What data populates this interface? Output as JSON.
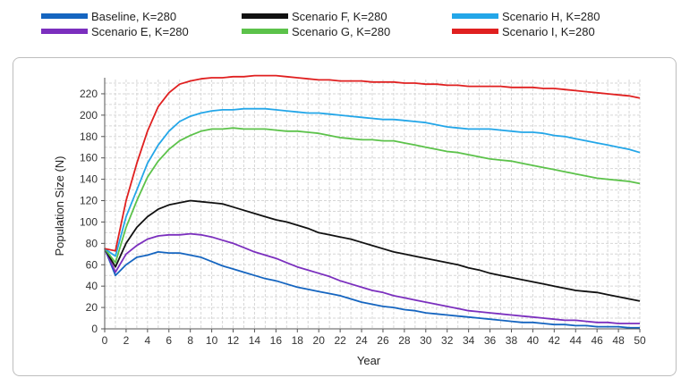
{
  "chart_data": {
    "type": "line",
    "title": "",
    "xlabel": "Year",
    "ylabel": "Population Size (N)",
    "xlim": [
      0,
      50
    ],
    "ylim": [
      0,
      230
    ],
    "xticks": [
      "0",
      "2",
      "4",
      "6",
      "8",
      "10",
      "12",
      "14",
      "16",
      "18",
      "20",
      "22",
      "24",
      "26",
      "28",
      "30",
      "32",
      "34",
      "36",
      "38",
      "40",
      "42",
      "44",
      "46",
      "48",
      "50"
    ],
    "yticks": [
      "0",
      "20",
      "40",
      "60",
      "80",
      "100",
      "120",
      "140",
      "160",
      "180",
      "200",
      "220"
    ],
    "grid": true,
    "legend_position": "top",
    "x": [
      0,
      1,
      2,
      3,
      4,
      5,
      6,
      7,
      8,
      9,
      10,
      11,
      12,
      13,
      14,
      15,
      16,
      17,
      18,
      19,
      20,
      21,
      22,
      23,
      24,
      25,
      26,
      27,
      28,
      29,
      30,
      31,
      32,
      33,
      34,
      35,
      36,
      37,
      38,
      39,
      40,
      41,
      42,
      43,
      44,
      45,
      46,
      47,
      48,
      49,
      50
    ],
    "series": [
      {
        "name": "Baseline, K=280",
        "color": "#1565c0",
        "values": [
          75,
          50,
          60,
          67,
          69,
          72,
          71,
          71,
          69,
          67,
          63,
          59,
          56,
          53,
          50,
          47,
          45,
          42,
          39,
          37,
          35,
          33,
          31,
          28,
          25,
          23,
          21,
          20,
          18,
          17,
          15,
          14,
          13,
          12,
          11,
          10,
          9,
          8,
          7,
          6,
          6,
          5,
          4,
          4,
          3,
          3,
          2,
          2,
          2,
          1,
          1
        ]
      },
      {
        "name": "Scenario E, K=280",
        "color": "#7b2fbe",
        "values": [
          75,
          53,
          70,
          78,
          84,
          87,
          88,
          88,
          89,
          88,
          86,
          83,
          80,
          76,
          72,
          69,
          66,
          62,
          58,
          55,
          52,
          49,
          45,
          42,
          39,
          36,
          34,
          31,
          29,
          27,
          25,
          23,
          21,
          19,
          17,
          16,
          15,
          14,
          13,
          12,
          11,
          10,
          9,
          8,
          8,
          7,
          6,
          6,
          5,
          5,
          5
        ]
      },
      {
        "name": "Scenario F, K=280",
        "color": "#111111",
        "values": [
          75,
          58,
          80,
          95,
          105,
          112,
          116,
          118,
          120,
          119,
          118,
          117,
          114,
          111,
          108,
          105,
          102,
          100,
          97,
          94,
          90,
          88,
          86,
          84,
          81,
          78,
          75,
          72,
          70,
          68,
          66,
          64,
          62,
          60,
          57,
          55,
          52,
          50,
          48,
          46,
          44,
          42,
          40,
          38,
          36,
          35,
          34,
          32,
          30,
          28,
          26
        ]
      },
      {
        "name": "Scenario G, K=280",
        "color": "#5cc24a",
        "values": [
          75,
          62,
          95,
          120,
          142,
          157,
          168,
          176,
          181,
          185,
          187,
          187,
          188,
          187,
          187,
          187,
          186,
          185,
          185,
          184,
          183,
          181,
          179,
          178,
          177,
          177,
          176,
          176,
          174,
          172,
          170,
          168,
          166,
          165,
          163,
          161,
          159,
          158,
          157,
          155,
          153,
          151,
          149,
          147,
          145,
          143,
          141,
          140,
          139,
          138,
          136
        ]
      },
      {
        "name": "Scenario H, K=280",
        "color": "#23a6e8",
        "values": [
          75,
          68,
          105,
          130,
          155,
          172,
          185,
          194,
          199,
          202,
          204,
          205,
          205,
          206,
          206,
          206,
          205,
          204,
          203,
          202,
          202,
          201,
          200,
          199,
          198,
          197,
          196,
          196,
          195,
          194,
          193,
          191,
          189,
          188,
          187,
          187,
          187,
          186,
          185,
          184,
          184,
          183,
          181,
          180,
          178,
          176,
          174,
          172,
          170,
          168,
          165
        ]
      },
      {
        "name": "Scenario I, K=280",
        "color": "#e02020",
        "values": [
          75,
          73,
          120,
          155,
          185,
          208,
          221,
          229,
          232,
          234,
          235,
          235,
          236,
          236,
          237,
          237,
          237,
          236,
          235,
          234,
          233,
          233,
          232,
          232,
          232,
          231,
          231,
          231,
          230,
          230,
          229,
          229,
          228,
          228,
          227,
          227,
          227,
          227,
          226,
          226,
          226,
          225,
          225,
          224,
          223,
          222,
          221,
          220,
          219,
          218,
          216
        ]
      }
    ]
  }
}
